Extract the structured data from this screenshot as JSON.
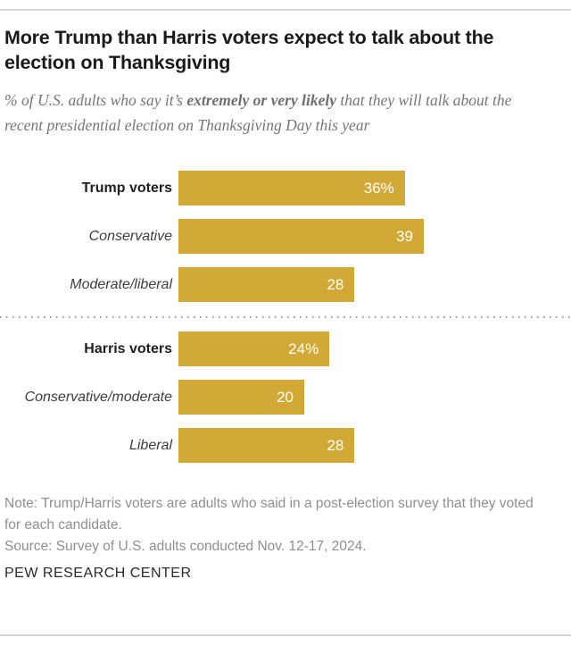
{
  "header": {
    "title": "More Trump than Harris voters expect to talk about the election on Thanksgiving",
    "subtitle_prefix": "% of U.S. adults who say it’s ",
    "subtitle_bold": "extremely or very likely",
    "subtitle_suffix": " that they will talk about the recent presidential election on Thanksgiving Day this year"
  },
  "chart_data": {
    "type": "bar",
    "orientation": "horizontal",
    "bar_color": "#d2a837",
    "value_label_color": "#ffffff",
    "xlim": [
      0,
      45
    ],
    "units": "% of U.S. adults",
    "groups": [
      {
        "name": "Trump voters",
        "rows": [
          {
            "label": "Trump voters",
            "emphasis": "bold",
            "value": 36,
            "value_label": "36%"
          },
          {
            "label": "Conservative",
            "emphasis": "italic",
            "value": 39,
            "value_label": "39"
          },
          {
            "label": "Moderate/liberal",
            "emphasis": "italic",
            "value": 28,
            "value_label": "28"
          }
        ]
      },
      {
        "name": "Harris voters",
        "rows": [
          {
            "label": "Harris voters",
            "emphasis": "bold",
            "value": 24,
            "value_label": "24%"
          },
          {
            "label": "Conservative/moderate",
            "emphasis": "italic",
            "value": 20,
            "value_label": "20"
          },
          {
            "label": "Liberal",
            "emphasis": "italic",
            "value": 28,
            "value_label": "28"
          }
        ]
      }
    ]
  },
  "footer": {
    "note": "Note: Trump/Harris voters are adults who said in a post-election survey that they voted for each candidate.",
    "source": "Source: Survey of U.S. adults conducted Nov. 12-17, 2024.",
    "brand": "PEW RESEARCH CENTER"
  }
}
